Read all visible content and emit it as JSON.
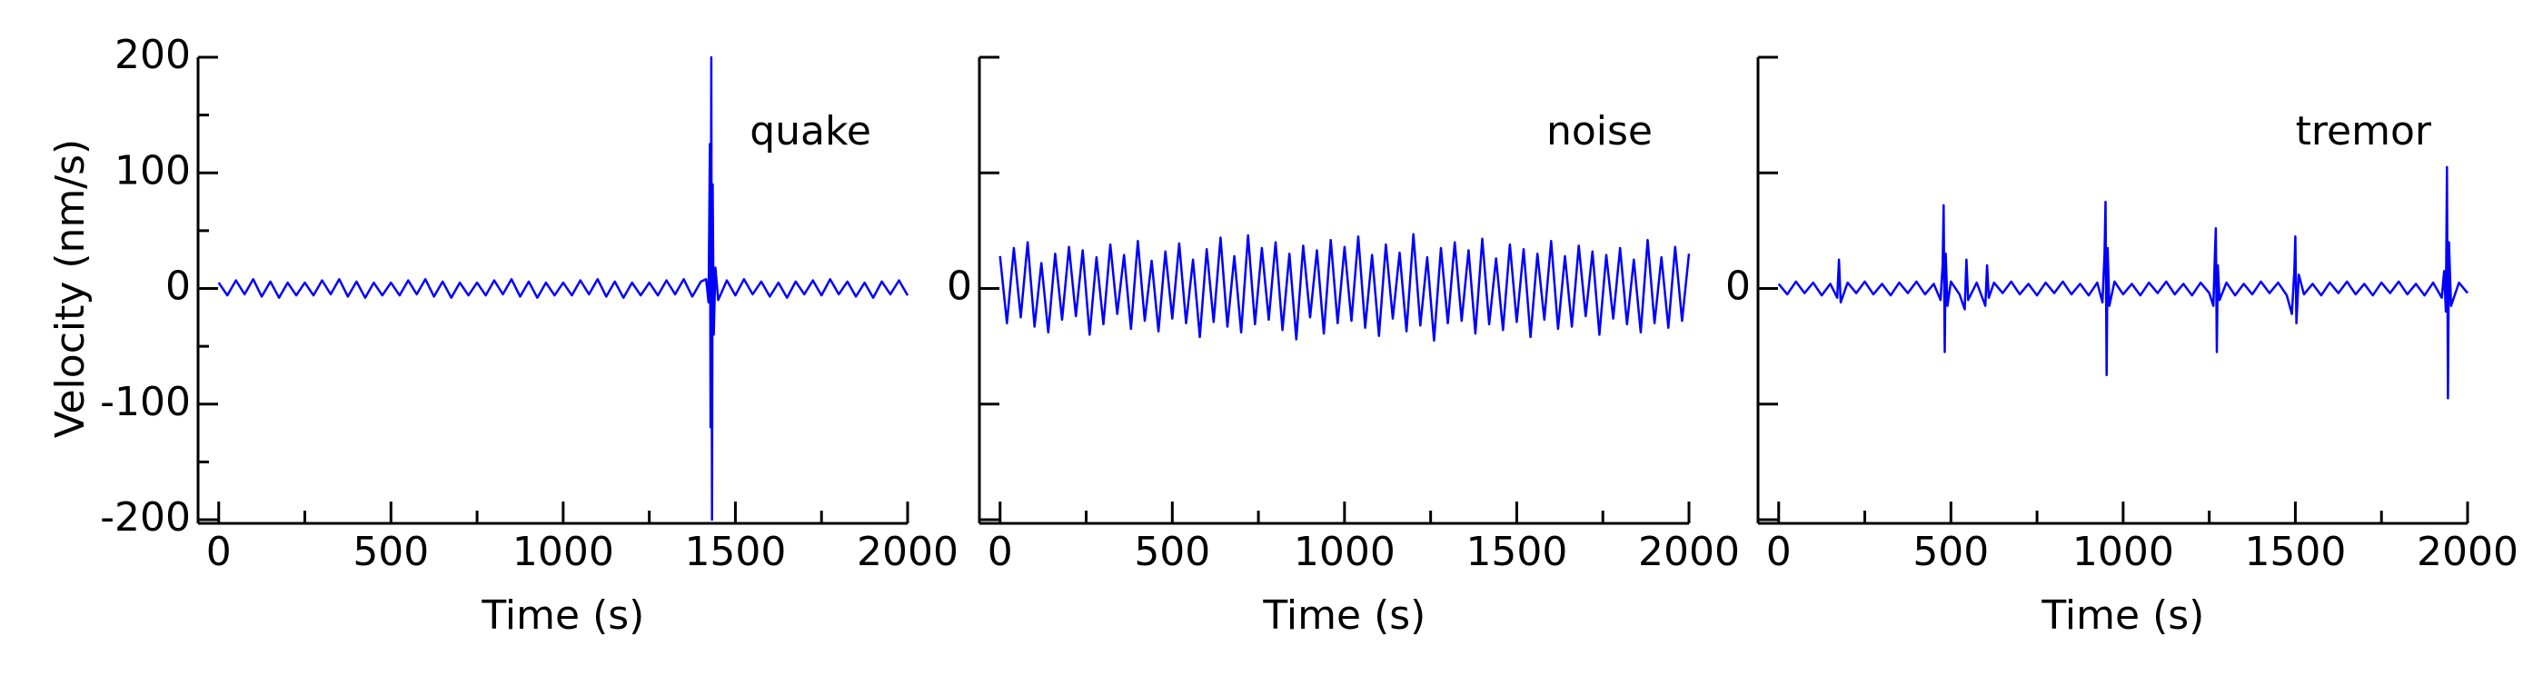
{
  "chart_data": [
    {
      "type": "line",
      "annotation": "quake",
      "xlabel": "Time (s)",
      "ylabel": "Velocity (nm/s)",
      "xlim": [
        -60,
        2000
      ],
      "ylim": [
        -200,
        200
      ],
      "xticks": [
        0,
        500,
        1000,
        1500,
        2000
      ],
      "xminorticks": [
        250,
        750,
        1250,
        1750
      ],
      "yticks": [
        -200,
        -100,
        0,
        100,
        200
      ],
      "yminorticks": [
        -150,
        -50,
        50,
        150
      ],
      "x": [
        0,
        25,
        50,
        75,
        100,
        125,
        150,
        175,
        200,
        225,
        250,
        275,
        300,
        325,
        350,
        375,
        400,
        425,
        450,
        475,
        500,
        525,
        550,
        575,
        600,
        625,
        650,
        675,
        700,
        725,
        750,
        775,
        800,
        825,
        850,
        875,
        900,
        925,
        950,
        975,
        1000,
        1025,
        1050,
        1075,
        1100,
        1125,
        1150,
        1175,
        1200,
        1225,
        1250,
        1275,
        1300,
        1325,
        1350,
        1375,
        1400,
        1415,
        1422,
        1426,
        1428,
        1430,
        1432,
        1434,
        1437,
        1442,
        1450,
        1475,
        1500,
        1525,
        1550,
        1575,
        1600,
        1625,
        1650,
        1675,
        1700,
        1725,
        1750,
        1775,
        1800,
        1825,
        1850,
        1875,
        1900,
        1925,
        1950,
        1975,
        2000
      ],
      "series": [
        {
          "color": "#0000ff",
          "values": [
            5,
            -6,
            7,
            -5,
            8,
            -7,
            6,
            -8,
            5,
            -6,
            5,
            -6,
            7,
            -5,
            8,
            -7,
            6,
            -8,
            5,
            -6,
            5,
            -6,
            7,
            -5,
            8,
            -7,
            6,
            -8,
            5,
            -6,
            5,
            -6,
            7,
            -5,
            8,
            -7,
            6,
            -8,
            5,
            -6,
            5,
            -6,
            7,
            -5,
            8,
            -7,
            6,
            -8,
            5,
            -6,
            5,
            -6,
            7,
            -5,
            8,
            -7,
            6,
            8,
            -12,
            125,
            -120,
            200,
            -200,
            90,
            -40,
            18,
            -10,
            7,
            -6,
            8,
            -5,
            6,
            -7,
            5,
            -8,
            6,
            -5,
            7,
            -6,
            8,
            -5,
            6,
            -7,
            5,
            -8,
            6,
            -5,
            7,
            -6
          ]
        }
      ]
    },
    {
      "type": "line",
      "annotation": "noise",
      "xlabel": "Time (s)",
      "xlim": [
        -60,
        2000
      ],
      "ylim": [
        -200,
        200
      ],
      "xticks": [
        0,
        500,
        1000,
        1500,
        2000
      ],
      "xminorticks": [
        250,
        750,
        1250,
        1750
      ],
      "yticks": [
        {
          "value": -200,
          "label": null
        },
        {
          "value": -100,
          "label": null
        },
        0,
        {
          "value": 100,
          "label": null
        },
        {
          "value": 200,
          "label": null
        }
      ],
      "x": [
        0,
        20,
        40,
        60,
        80,
        100,
        120,
        140,
        160,
        180,
        200,
        220,
        240,
        260,
        280,
        300,
        320,
        340,
        360,
        380,
        400,
        420,
        440,
        460,
        480,
        500,
        520,
        540,
        560,
        580,
        600,
        620,
        640,
        660,
        680,
        700,
        720,
        740,
        760,
        780,
        800,
        820,
        840,
        860,
        880,
        900,
        920,
        940,
        960,
        980,
        1000,
        1020,
        1040,
        1060,
        1080,
        1100,
        1120,
        1140,
        1160,
        1180,
        1200,
        1220,
        1240,
        1260,
        1280,
        1300,
        1320,
        1340,
        1360,
        1380,
        1400,
        1420,
        1440,
        1460,
        1480,
        1500,
        1520,
        1540,
        1560,
        1580,
        1600,
        1620,
        1640,
        1660,
        1680,
        1700,
        1720,
        1740,
        1760,
        1780,
        1800,
        1820,
        1840,
        1860,
        1880,
        1900,
        1920,
        1940,
        1960,
        1980,
        2000
      ],
      "series": [
        {
          "color": "#0000ff",
          "values": [
            28,
            -30,
            35,
            -25,
            40,
            -33,
            22,
            -38,
            30,
            -27,
            36,
            -24,
            33,
            -40,
            27,
            -31,
            38,
            -22,
            29,
            -35,
            41,
            -28,
            24,
            -37,
            32,
            -26,
            39,
            -30,
            25,
            -42,
            34,
            -29,
            44,
            -33,
            28,
            -38,
            46,
            -31,
            35,
            -27,
            40,
            -36,
            30,
            -44,
            37,
            -25,
            33,
            -39,
            42,
            -30,
            36,
            -28,
            45,
            -34,
            29,
            -41,
            38,
            -26,
            31,
            -37,
            47,
            -32,
            27,
            -45,
            35,
            -30,
            40,
            -28,
            33,
            -39,
            43,
            -31,
            26,
            -36,
            38,
            -29,
            34,
            -42,
            30,
            -27,
            41,
            -35,
            28,
            -33,
            37,
            -24,
            32,
            -40,
            29,
            -26,
            35,
            -31,
            25,
            -38,
            42,
            -30,
            27,
            -34,
            36,
            -28,
            30
          ]
        }
      ]
    },
    {
      "type": "line",
      "annotation": "tremor",
      "xlabel": "Time (s)",
      "xlim": [
        -60,
        2000
      ],
      "ylim": [
        -200,
        200
      ],
      "xticks": [
        0,
        500,
        1000,
        1500,
        2000
      ],
      "xminorticks": [
        250,
        750,
        1250,
        1750
      ],
      "yticks": [
        {
          "value": -200,
          "label": null
        },
        {
          "value": -100,
          "label": null
        },
        0,
        {
          "value": 100,
          "label": null
        },
        {
          "value": 200,
          "label": null
        }
      ],
      "x": [
        0,
        25,
        50,
        75,
        100,
        125,
        150,
        170,
        175,
        180,
        200,
        225,
        250,
        275,
        300,
        325,
        350,
        375,
        400,
        425,
        450,
        470,
        476,
        479,
        482,
        485,
        490,
        500,
        525,
        540,
        545,
        550,
        575,
        600,
        605,
        610,
        625,
        650,
        675,
        700,
        725,
        750,
        775,
        800,
        825,
        850,
        875,
        900,
        925,
        940,
        946,
        949,
        952,
        955,
        960,
        975,
        1000,
        1025,
        1050,
        1075,
        1100,
        1125,
        1150,
        1175,
        1200,
        1225,
        1250,
        1262,
        1266,
        1269,
        1272,
        1275,
        1280,
        1300,
        1325,
        1350,
        1375,
        1400,
        1425,
        1450,
        1475,
        1490,
        1497,
        1500,
        1503,
        1510,
        1525,
        1550,
        1575,
        1600,
        1625,
        1650,
        1675,
        1700,
        1725,
        1750,
        1775,
        1800,
        1825,
        1850,
        1875,
        1900,
        1925,
        1932,
        1937,
        1940,
        1943,
        1946,
        1952,
        1975,
        2000
      ],
      "series": [
        {
          "color": "#0000ff",
          "values": [
            4,
            -5,
            6,
            -4,
            5,
            -6,
            4,
            -8,
            25,
            -12,
            5,
            -4,
            6,
            -5,
            4,
            -6,
            5,
            -4,
            6,
            -5,
            4,
            -10,
            20,
            72,
            -55,
            30,
            -15,
            6,
            -5,
            -18,
            25,
            -10,
            5,
            -15,
            20,
            -8,
            5,
            -4,
            6,
            -5,
            4,
            -6,
            5,
            -4,
            6,
            -5,
            4,
            -6,
            5,
            -12,
            30,
            75,
            -75,
            35,
            -15,
            6,
            -5,
            4,
            -6,
            5,
            -4,
            6,
            -5,
            4,
            -6,
            5,
            -4,
            -15,
            25,
            52,
            -55,
            20,
            -10,
            5,
            -6,
            4,
            -5,
            6,
            -4,
            5,
            -6,
            -22,
            15,
            45,
            -30,
            12,
            -5,
            4,
            -6,
            5,
            -4,
            6,
            -5,
            4,
            -6,
            5,
            -4,
            6,
            -5,
            4,
            -6,
            5,
            -8,
            15,
            -20,
            105,
            -95,
            40,
            -15,
            5,
            -4
          ]
        }
      ]
    }
  ]
}
